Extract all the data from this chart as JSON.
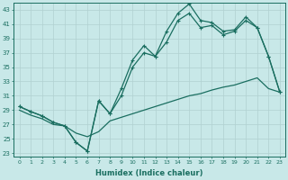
{
  "background_color": "#c8e8e8",
  "grid_color": "#b0d0d0",
  "line_color": "#1a6e60",
  "xlabel": "Humidex (Indice chaleur)",
  "ylim": [
    22.5,
    44
  ],
  "xlim": [
    -0.5,
    23.5
  ],
  "yticks": [
    23,
    25,
    27,
    29,
    31,
    33,
    35,
    37,
    39,
    41,
    43
  ],
  "xticks": [
    0,
    1,
    2,
    3,
    4,
    5,
    6,
    7,
    8,
    9,
    10,
    11,
    12,
    13,
    14,
    15,
    16,
    17,
    18,
    19,
    20,
    21,
    22,
    23
  ],
  "line1_x": [
    0,
    1,
    2,
    3,
    4,
    5,
    6,
    7,
    8,
    9,
    10,
    11,
    12,
    13,
    14,
    15,
    16,
    17,
    18,
    19,
    20,
    21,
    22,
    23
  ],
  "line1_y": [
    29.5,
    28.8,
    28.2,
    27.3,
    26.8,
    24.5,
    23.3,
    30.3,
    28.5,
    32.0,
    36.0,
    38.0,
    36.5,
    40.0,
    42.5,
    43.8,
    41.5,
    41.2,
    40.0,
    40.2,
    42.0,
    40.5,
    36.5,
    31.5
  ],
  "line2_x": [
    0,
    1,
    2,
    3,
    4,
    5,
    6,
    7,
    8,
    9,
    10,
    11,
    12,
    13,
    14,
    15,
    16,
    17,
    18,
    19,
    20,
    21,
    22,
    23
  ],
  "line2_y": [
    29.5,
    28.8,
    28.2,
    27.3,
    26.8,
    24.5,
    23.3,
    30.3,
    28.5,
    31.0,
    35.0,
    37.0,
    36.5,
    38.5,
    41.5,
    42.5,
    40.5,
    40.8,
    39.5,
    40.0,
    41.5,
    40.5,
    36.5,
    31.5
  ],
  "line3_x": [
    0,
    1,
    2,
    3,
    4,
    5,
    6,
    7,
    8,
    9,
    10,
    11,
    12,
    13,
    14,
    15,
    16,
    17,
    18,
    19,
    20,
    21,
    22,
    23
  ],
  "line3_y": [
    29.0,
    28.3,
    27.8,
    27.0,
    26.8,
    25.8,
    25.3,
    26.0,
    27.5,
    28.0,
    28.5,
    29.0,
    29.5,
    30.0,
    30.5,
    31.0,
    31.3,
    31.8,
    32.2,
    32.5,
    33.0,
    33.5,
    32.0,
    31.5
  ]
}
